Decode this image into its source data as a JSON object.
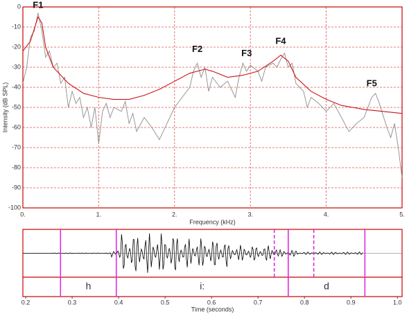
{
  "chart_data": [
    {
      "type": "spectrum",
      "xlabel": "Frequency (kHz)",
      "ylabel": "Intensity (dB SPL)",
      "xlim": [
        0,
        5
      ],
      "ylim": [
        -100,
        0
      ],
      "grid": true,
      "xticks": [
        {
          "value": 0,
          "label": "0."
        },
        {
          "value": 1,
          "label": "1."
        },
        {
          "value": 2,
          "label": "2."
        },
        {
          "value": 3,
          "label": "3."
        },
        {
          "value": 4,
          "label": "4."
        },
        {
          "value": 5,
          "label": "5."
        }
      ],
      "yticks": [
        0,
        -10,
        -20,
        -30,
        -40,
        -50,
        -60,
        -70,
        -80,
        -90,
        -100
      ],
      "series": [
        {
          "color": "#8c8c8c",
          "x": [
            0,
            0.05,
            0.1,
            0.15,
            0.2,
            0.25,
            0.3,
            0.35,
            0.4,
            0.45,
            0.5,
            0.55,
            0.6,
            0.65,
            0.7,
            0.75,
            0.8,
            0.85,
            0.9,
            0.95,
            1.0,
            1.05,
            1.1,
            1.15,
            1.2,
            1.3,
            1.35,
            1.4,
            1.45,
            1.5,
            1.6,
            1.7,
            1.8,
            1.9,
            2.0,
            2.1,
            2.2,
            2.25,
            2.3,
            2.35,
            2.4,
            2.45,
            2.5,
            2.6,
            2.7,
            2.8,
            2.85,
            2.9,
            2.95,
            3.0,
            3.1,
            3.15,
            3.2,
            3.3,
            3.35,
            3.4,
            3.45,
            3.5,
            3.55,
            3.6,
            3.7,
            3.75,
            3.8,
            3.9,
            4.0,
            4.1,
            4.2,
            4.3,
            4.4,
            4.5,
            4.6,
            4.65,
            4.7,
            4.8,
            4.85,
            4.9,
            4.95,
            5.0
          ],
          "values": [
            -38,
            -30,
            -15,
            -12,
            -3,
            -12,
            -25,
            -22,
            -30,
            -28,
            -38,
            -35,
            -50,
            -42,
            -48,
            -45,
            -55,
            -50,
            -60,
            -50,
            -68,
            -52,
            -48,
            -55,
            -50,
            -52,
            -47,
            -58,
            -53,
            -62,
            -55,
            -60,
            -66,
            -58,
            -50,
            -45,
            -40,
            -32,
            -28,
            -35,
            -30,
            -42,
            -35,
            -40,
            -37,
            -45,
            -35,
            -28,
            -32,
            -29,
            -32,
            -37,
            -30,
            -28,
            -30,
            -26,
            -23,
            -30,
            -28,
            -38,
            -42,
            -50,
            -45,
            -48,
            -52,
            -48,
            -55,
            -62,
            -58,
            -55,
            -45,
            -43,
            -48,
            -60,
            -65,
            -58,
            -70,
            -85
          ]
        },
        {
          "color": "#cc1111",
          "x": [
            0,
            0.1,
            0.2,
            0.25,
            0.3,
            0.4,
            0.6,
            0.8,
            1.0,
            1.2,
            1.4,
            1.6,
            1.8,
            2.0,
            2.2,
            2.4,
            2.5,
            2.7,
            2.9,
            3.1,
            3.3,
            3.4,
            3.5,
            3.6,
            3.8,
            4.0,
            4.2,
            4.5,
            5.0
          ],
          "values": [
            -22,
            -17,
            -5,
            -8,
            -20,
            -30,
            -38,
            -43,
            -45,
            -46,
            -46,
            -44,
            -41,
            -37,
            -33,
            -31,
            -32,
            -35,
            -34,
            -32,
            -27,
            -24,
            -27,
            -35,
            -42,
            -46,
            -49,
            -51,
            -53
          ]
        }
      ],
      "annotations": [
        {
          "text": "F1",
          "x": 0.2,
          "y": -2
        },
        {
          "text": "F2",
          "x": 2.3,
          "y": -24
        },
        {
          "text": "F3",
          "x": 2.95,
          "y": -26
        },
        {
          "text": "F4",
          "x": 3.4,
          "y": -20
        },
        {
          "text": "F5",
          "x": 4.6,
          "y": -41
        }
      ]
    },
    {
      "type": "waveform",
      "xlabel": "Time (seconds)",
      "xlim": [
        0.194,
        1.01
      ],
      "xticks": [
        0.2,
        0.3,
        0.4,
        0.5,
        0.6,
        0.7,
        0.8,
        0.9,
        {
          "value": 1,
          "label": "1.0"
        }
      ],
      "segments": [
        {
          "label": "h",
          "start": 0.275,
          "end": 0.395
        },
        {
          "label": "i:",
          "start": 0.395,
          "end": 0.765
        },
        {
          "label": "d",
          "start": 0.765,
          "end": 0.93
        }
      ],
      "dashed_boundaries": [
        0.735,
        0.82
      ],
      "boundary_color": "#e020e0"
    }
  ]
}
